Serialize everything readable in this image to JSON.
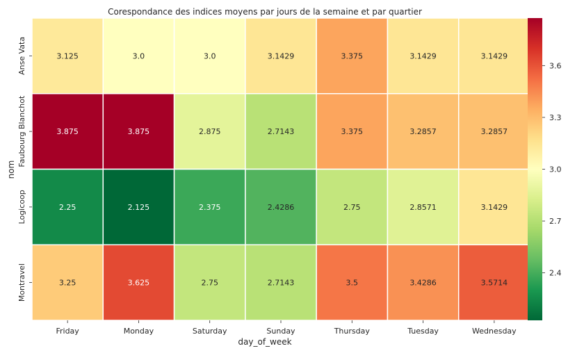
{
  "chart_data": {
    "type": "heatmap",
    "title": "Corespondance des indices moyens par jours de la semaine et par quartier",
    "xlabel": "day_of_week",
    "ylabel": "nom",
    "x_categories": [
      "Friday",
      "Monday",
      "Saturday",
      "Sunday",
      "Thursday",
      "Tuesday",
      "Wednesday"
    ],
    "y_categories": [
      "Anse Vata",
      "Faubourg Blanchot",
      "Logicoop",
      "Montravel"
    ],
    "values": [
      [
        3.125,
        3.0,
        3.0,
        3.1429,
        3.375,
        3.1429,
        3.1429
      ],
      [
        3.875,
        3.875,
        2.875,
        2.7143,
        3.375,
        3.2857,
        3.2857
      ],
      [
        2.25,
        2.125,
        2.375,
        2.4286,
        2.75,
        2.8571,
        3.1429
      ],
      [
        3.25,
        3.625,
        2.75,
        2.7143,
        3.5,
        3.4286,
        3.5714
      ]
    ],
    "value_labels": [
      [
        "3.125",
        "3.0",
        "3.0",
        "3.1429",
        "3.375",
        "3.1429",
        "3.1429"
      ],
      [
        "3.875",
        "3.875",
        "2.875",
        "2.7143",
        "3.375",
        "3.2857",
        "3.2857"
      ],
      [
        "2.25",
        "2.125",
        "2.375",
        "2.4286",
        "2.75",
        "2.8571",
        "3.1429"
      ],
      [
        "3.25",
        "3.625",
        "2.75",
        "2.7143",
        "3.5",
        "3.4286",
        "3.5714"
      ]
    ],
    "colormap": "RdYlGn_r",
    "vmin": 2.125,
    "vmax": 3.875,
    "colorbar_ticks": [
      2.4,
      2.7,
      3.0,
      3.3,
      3.6
    ],
    "colorbar_tick_labels": [
      "2.4",
      "2.7",
      "3.0",
      "3.3",
      "3.6"
    ],
    "grid": false
  }
}
